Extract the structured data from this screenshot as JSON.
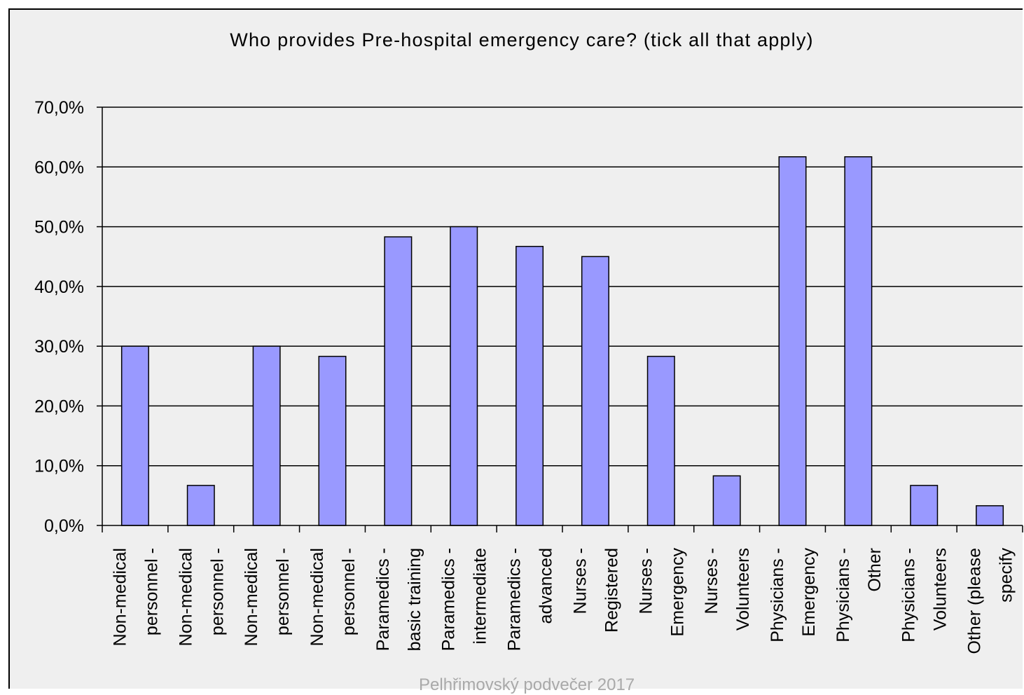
{
  "chart_data": {
    "type": "bar",
    "title": "Who provides Pre-hospital emergency care? (tick all that apply)",
    "xlabel": "",
    "ylabel": "",
    "ylim": [
      0,
      70
    ],
    "yticks": [
      "70,0%",
      "60,0%",
      "50,0%",
      "40,0%",
      "30,0%",
      "20,0%",
      "10,0%",
      "0,0%"
    ],
    "grid": true,
    "legend": "none",
    "bar_color": "#9999ff",
    "categories": [
      [
        "Non-medical",
        "personnel -"
      ],
      [
        "Non-medical",
        "personnel -"
      ],
      [
        "Non-medical",
        "personnel -"
      ],
      [
        "Non-medical",
        "personnel -"
      ],
      [
        "Paramedics -",
        "basic training"
      ],
      [
        "Paramedics -",
        "intermediate"
      ],
      [
        "Paramedics -",
        "advanced"
      ],
      [
        "Nurses -",
        "Registered"
      ],
      [
        "Nurses -",
        "Emergency"
      ],
      [
        "Nurses -",
        "Volunteers"
      ],
      [
        "Physicians -",
        "Emergency"
      ],
      [
        "Physicians -",
        "Other"
      ],
      [
        "Physicians -",
        "Volunteers"
      ],
      [
        "Other (please",
        "specify"
      ]
    ],
    "values": [
      30.0,
      6.7,
      30.0,
      28.3,
      48.3,
      50.0,
      46.7,
      45.0,
      28.3,
      8.3,
      61.7,
      61.7,
      6.7,
      3.3
    ]
  },
  "footer": "Pelhřimovský podvečer 2017"
}
